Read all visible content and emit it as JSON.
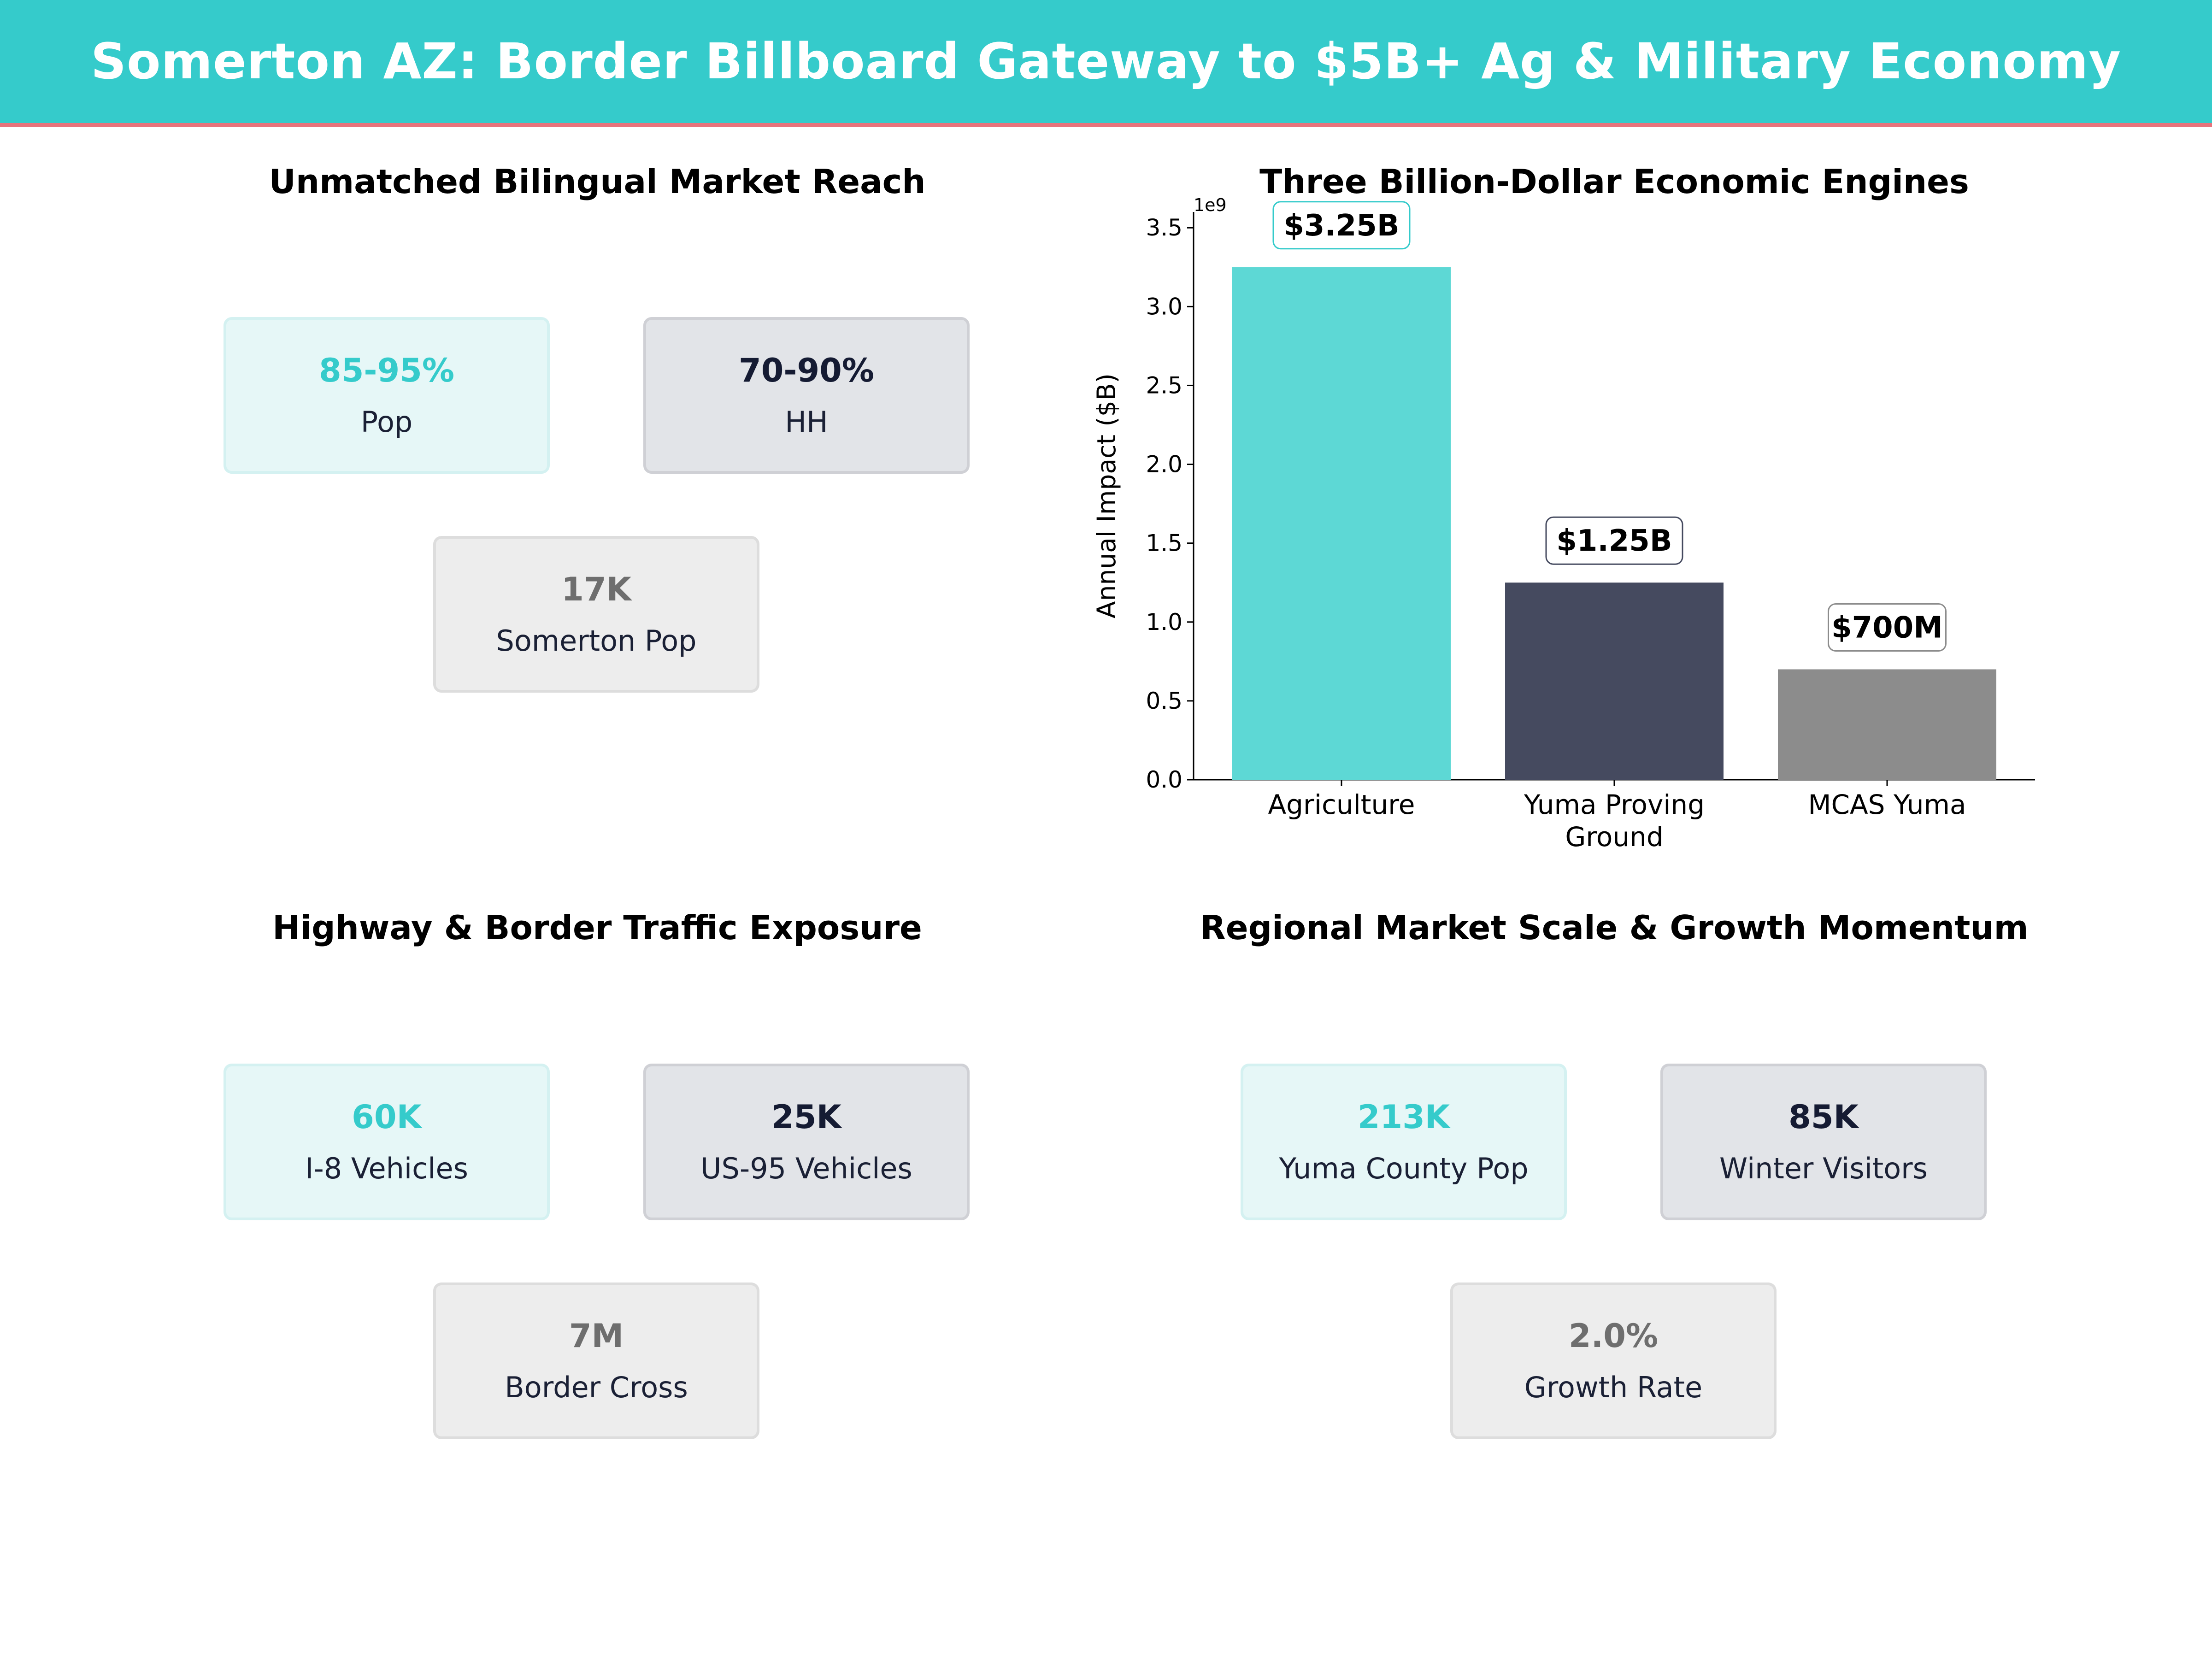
{
  "title": "Somerton AZ: Border Billboard Gateway to $5B+ Ag & Military Economy",
  "colors": {
    "teal": "#35CBCB",
    "navy": "#151B33",
    "gray": "#6E6E6E",
    "accent_line": "#E8737C"
  },
  "panels": {
    "bilingual": {
      "title": "Unmatched Bilingual Market Reach",
      "cards": [
        {
          "value": "85-95%",
          "label": "Pop"
        },
        {
          "value": "70-90%",
          "label": "HH"
        },
        {
          "value": "17K",
          "label": "Somerton Pop"
        }
      ]
    },
    "traffic": {
      "title": "Highway & Border Traffic Exposure",
      "cards": [
        {
          "value": "60K",
          "label": "I-8 Vehicles"
        },
        {
          "value": "25K",
          "label": "US-95 Vehicles"
        },
        {
          "value": "7M",
          "label": "Border Cross"
        }
      ]
    },
    "regional": {
      "title": "Regional Market Scale & Growth Momentum",
      "cards": [
        {
          "value": "213K",
          "label": "Yuma County Pop"
        },
        {
          "value": "85K",
          "label": "Winter Visitors"
        },
        {
          "value": "2.0%",
          "label": "Growth Rate"
        }
      ]
    }
  },
  "chart_data": {
    "type": "bar",
    "title": "Three Billion-Dollar Economic Engines",
    "categories": [
      "Agriculture",
      "Yuma Proving Ground",
      "MCAS Yuma"
    ],
    "values": [
      3250000000,
      1250000000,
      700000000
    ],
    "data_labels": [
      "$3.25B",
      "$1.25B",
      "$700M"
    ],
    "bar_colors": [
      "#5DD8D5",
      "#454A5F",
      "#8C8C8C"
    ],
    "label_box_edges": [
      "#35CBCB",
      "#454A5F",
      "#8C8C8C"
    ],
    "ylabel": "Annual Impact ($B)",
    "xlabel": "",
    "ylim": [
      0,
      3600000000
    ],
    "yticks": [
      0,
      0.5,
      1.0,
      1.5,
      2.0,
      2.5,
      3.0,
      3.5
    ],
    "ytick_labels": [
      "0.0",
      "0.5",
      "1.0",
      "1.5",
      "2.0",
      "2.5",
      "3.0",
      "3.5"
    ],
    "offset_label": "1e9",
    "grid": false,
    "legend": "none"
  }
}
